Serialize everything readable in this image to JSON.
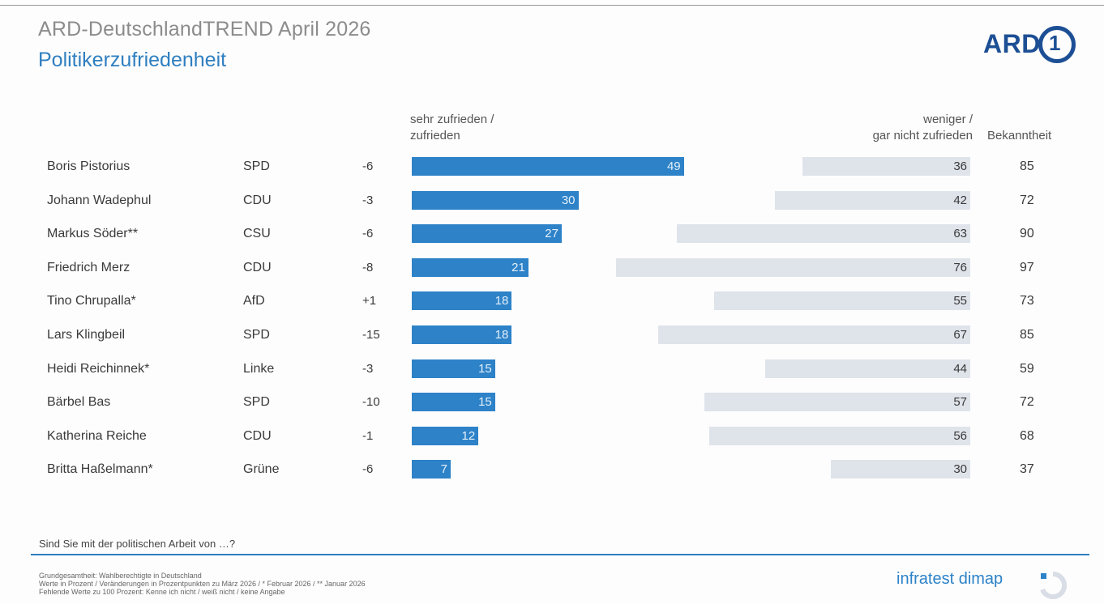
{
  "header": {
    "title": "ARD-DeutschlandTREND April 2026",
    "subtitle": "Politikerzufriedenheit",
    "logo_text": "ARD",
    "logo_digit": "1"
  },
  "columns": {
    "positive": "sehr zufrieden / zufrieden",
    "positive_line1": "sehr zufrieden /",
    "positive_line2": "zufrieden",
    "negative": "weniger / gar nicht zufrieden",
    "negative_line1": "weniger /",
    "negative_line2": "gar nicht zufrieden",
    "bekanntheit": "Bekanntheit"
  },
  "colors": {
    "positive": "#2d82c8",
    "negative": "#dfe3ea",
    "accent": "#2f7fc0",
    "brand": "#1d4f95"
  },
  "chart_data": {
    "type": "bar",
    "categories": [
      "Boris Pistorius",
      "Johann Wadephul",
      "Markus Söder**",
      "Friedrich Merz",
      "Tino Chrupalla*",
      "Lars Klingbeil",
      "Heidi Reichinnek*",
      "Bärbel Bas",
      "Katherina Reiche",
      "Britta Haßelmann*"
    ],
    "rows": [
      {
        "name": "Boris Pistorius",
        "party": "SPD",
        "change": "-6",
        "positive": "49",
        "negative": "36",
        "bekanntheit": "85"
      },
      {
        "name": "Johann Wadephul",
        "party": "CDU",
        "change": "-3",
        "positive": "30",
        "negative": "42",
        "bekanntheit": "72"
      },
      {
        "name": "Markus Söder**",
        "party": "CSU",
        "change": "-6",
        "positive": "27",
        "negative": "63",
        "bekanntheit": "90"
      },
      {
        "name": "Friedrich Merz",
        "party": "CDU",
        "change": "-8",
        "positive": "21",
        "negative": "76",
        "bekanntheit": "97"
      },
      {
        "name": "Tino Chrupalla*",
        "party": "AfD",
        "change": "+1",
        "positive": "18",
        "negative": "55",
        "bekanntheit": "73"
      },
      {
        "name": "Lars Klingbeil",
        "party": "SPD",
        "change": "-15",
        "positive": "18",
        "negative": "67",
        "bekanntheit": "85"
      },
      {
        "name": "Heidi Reichinnek*",
        "party": "Linke",
        "change": "-3",
        "positive": "15",
        "negative": "44",
        "bekanntheit": "59"
      },
      {
        "name": "Bärbel Bas",
        "party": "SPD",
        "change": "-10",
        "positive": "15",
        "negative": "57",
        "bekanntheit": "72"
      },
      {
        "name": "Katherina Reiche",
        "party": "CDU",
        "change": "-1",
        "positive": "12",
        "negative": "56",
        "bekanntheit": "68"
      },
      {
        "name": "Britta Haßelmann*",
        "party": "Grüne",
        "change": "-6",
        "positive": "7",
        "negative": "30",
        "bekanntheit": "37"
      }
    ],
    "series": [
      {
        "name": "sehr zufrieden / zufrieden",
        "values": [
          49,
          30,
          27,
          21,
          18,
          18,
          15,
          15,
          12,
          7
        ]
      },
      {
        "name": "weniger / gar nicht zufrieden",
        "values": [
          36,
          42,
          63,
          76,
          55,
          67,
          44,
          57,
          56,
          30
        ]
      }
    ],
    "ylim": [
      0,
      100
    ]
  },
  "footer": {
    "question": "Sind Sie mit der politischen Arbeit von …?",
    "note1": "Grundgesamtheit: Wahlberechtigte in Deutschland",
    "note2": "Werte in Prozent / Veränderungen in Prozentpunkten zu März 2026 / * Februar 2026 / ** Januar 2026",
    "note3": "Fehlende Werte zu 100 Prozent: Kenne ich nicht / weiß nicht / keine Angabe",
    "brand": "infratest dimap"
  }
}
